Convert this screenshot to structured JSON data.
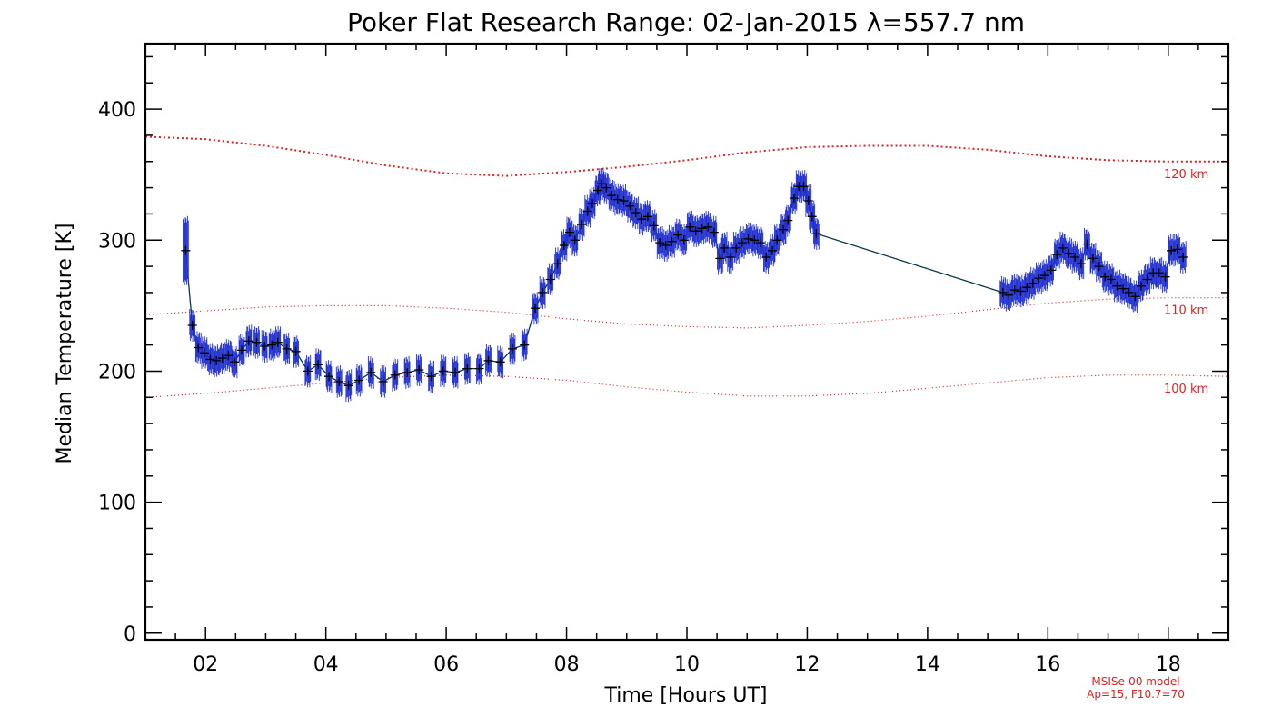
{
  "chart_data": {
    "type": "line",
    "title": "Poker Flat Research Range: 02-Jan-2015 λ=557.7 nm",
    "xlabel": "Time [Hours UT]",
    "ylabel": "Median Temperature [K]",
    "xlim": [
      1,
      19
    ],
    "ylim": [
      -5,
      450
    ],
    "x_ticks": [
      2,
      4,
      6,
      8,
      10,
      12,
      14,
      16,
      18
    ],
    "x_tick_labels": [
      "02",
      "04",
      "06",
      "08",
      "10",
      "12",
      "14",
      "16",
      "18"
    ],
    "y_ticks": [
      0,
      100,
      200,
      300,
      400
    ],
    "y_tick_labels": [
      "0",
      "100",
      "200",
      "300",
      "400"
    ],
    "grid": false,
    "colors": {
      "data_line": "#0a3a4a",
      "error_bars": "#1f2fd0",
      "markers": "#000000",
      "model": "#e02020"
    },
    "series": [
      {
        "marker": "+",
        "error_bars": true,
        "points": [
          [
            1.67,
            292,
            24
          ],
          [
            1.78,
            235,
            10
          ],
          [
            1.88,
            218,
            10
          ],
          [
            1.98,
            214,
            10
          ],
          [
            2.08,
            209,
            10
          ],
          [
            2.18,
            208,
            10
          ],
          [
            2.28,
            210,
            10
          ],
          [
            2.38,
            212,
            10
          ],
          [
            2.48,
            207,
            10
          ],
          [
            2.6,
            216,
            10
          ],
          [
            2.72,
            223,
            10
          ],
          [
            2.85,
            222,
            10
          ],
          [
            2.98,
            219,
            10
          ],
          [
            3.1,
            220,
            10
          ],
          [
            3.2,
            222,
            10
          ],
          [
            3.35,
            217,
            10
          ],
          [
            3.5,
            215,
            10
          ],
          [
            3.7,
            200,
            10
          ],
          [
            3.87,
            205,
            10
          ],
          [
            4.05,
            196,
            10
          ],
          [
            4.22,
            192,
            10
          ],
          [
            4.38,
            189,
            10
          ],
          [
            4.55,
            193,
            10
          ],
          [
            4.75,
            199,
            10
          ],
          [
            4.95,
            192,
            10
          ],
          [
            5.15,
            197,
            10
          ],
          [
            5.35,
            199,
            10
          ],
          [
            5.55,
            201,
            10
          ],
          [
            5.75,
            196,
            10
          ],
          [
            5.95,
            200,
            10
          ],
          [
            6.15,
            199,
            10
          ],
          [
            6.35,
            202,
            10
          ],
          [
            6.55,
            202,
            10
          ],
          [
            6.7,
            208,
            10
          ],
          [
            6.9,
            207,
            10
          ],
          [
            7.1,
            217,
            10
          ],
          [
            7.3,
            220,
            10
          ],
          [
            7.48,
            248,
            10
          ],
          [
            7.6,
            260,
            10
          ],
          [
            7.73,
            270,
            10
          ],
          [
            7.85,
            282,
            10
          ],
          [
            7.96,
            296,
            10
          ],
          [
            8.05,
            306,
            10
          ],
          [
            8.14,
            300,
            10
          ],
          [
            8.25,
            312,
            10
          ],
          [
            8.35,
            322,
            10
          ],
          [
            8.43,
            328,
            10
          ],
          [
            8.52,
            338,
            10
          ],
          [
            8.58,
            343,
            10
          ],
          [
            8.66,
            340,
            10
          ],
          [
            8.75,
            334,
            10
          ],
          [
            8.85,
            331,
            10
          ],
          [
            8.95,
            330,
            10
          ],
          [
            9.05,
            326,
            10
          ],
          [
            9.15,
            321,
            10
          ],
          [
            9.25,
            316,
            10
          ],
          [
            9.35,
            318,
            10
          ],
          [
            9.45,
            311,
            10
          ],
          [
            9.55,
            298,
            10
          ],
          [
            9.65,
            296,
            10
          ],
          [
            9.75,
            299,
            10
          ],
          [
            9.85,
            304,
            10
          ],
          [
            9.95,
            300,
            10
          ],
          [
            10.05,
            310,
            10
          ],
          [
            10.15,
            307,
            10
          ],
          [
            10.25,
            309,
            10
          ],
          [
            10.35,
            310,
            10
          ],
          [
            10.45,
            306,
            10
          ],
          [
            10.55,
            286,
            10
          ],
          [
            10.62,
            294,
            10
          ],
          [
            10.72,
            287,
            10
          ],
          [
            10.82,
            294,
            10
          ],
          [
            10.92,
            298,
            10
          ],
          [
            11.02,
            301,
            10
          ],
          [
            11.12,
            300,
            10
          ],
          [
            11.22,
            298,
            10
          ],
          [
            11.32,
            287,
            10
          ],
          [
            11.42,
            292,
            10
          ],
          [
            11.5,
            300,
            10
          ],
          [
            11.6,
            308,
            10
          ],
          [
            11.68,
            315,
            10
          ],
          [
            11.78,
            332,
            10
          ],
          [
            11.86,
            341,
            10
          ],
          [
            11.94,
            341,
            10
          ],
          [
            12.02,
            330,
            10
          ],
          [
            12.08,
            318,
            10
          ],
          [
            12.15,
            305,
            10
          ],
          [
            15.25,
            260,
            10
          ],
          [
            15.35,
            258,
            10
          ],
          [
            15.45,
            262,
            10
          ],
          [
            15.55,
            261,
            10
          ],
          [
            15.65,
            264,
            10
          ],
          [
            15.75,
            267,
            10
          ],
          [
            15.85,
            271,
            10
          ],
          [
            15.95,
            273,
            10
          ],
          [
            16.05,
            277,
            10
          ],
          [
            16.15,
            289,
            10
          ],
          [
            16.25,
            294,
            10
          ],
          [
            16.35,
            290,
            10
          ],
          [
            16.45,
            287,
            10
          ],
          [
            16.55,
            282,
            10
          ],
          [
            16.65,
            297,
            10
          ],
          [
            16.75,
            286,
            10
          ],
          [
            16.85,
            280,
            10
          ],
          [
            16.95,
            272,
            10
          ],
          [
            17.05,
            270,
            10
          ],
          [
            17.15,
            265,
            10
          ],
          [
            17.25,
            263,
            10
          ],
          [
            17.35,
            260,
            10
          ],
          [
            17.45,
            257,
            10
          ],
          [
            17.55,
            265,
            10
          ],
          [
            17.65,
            270,
            10
          ],
          [
            17.75,
            275,
            10
          ],
          [
            17.85,
            275,
            10
          ],
          [
            17.95,
            272,
            10
          ],
          [
            18.05,
            292,
            10
          ],
          [
            18.15,
            293,
            10
          ],
          [
            18.25,
            287,
            10
          ]
        ]
      },
      {
        "name": "120 km",
        "style": "dotted",
        "x": [
          1.0,
          2.0,
          3.0,
          4.0,
          5.0,
          6.0,
          7.0,
          8.0,
          9.0,
          10.0,
          11.0,
          12.0,
          13.0,
          14.0,
          15.0,
          16.0,
          17.0,
          18.0,
          19.0
        ],
        "y": [
          379,
          377,
          372,
          365,
          357,
          351,
          349,
          352,
          356,
          361,
          367,
          371,
          372,
          372,
          369,
          364,
          361,
          360,
          360
        ]
      },
      {
        "name": "110 km",
        "style": "dotted",
        "x": [
          1.0,
          2.0,
          3.0,
          4.0,
          5.0,
          6.0,
          7.0,
          8.0,
          9.0,
          10.0,
          11.0,
          12.0,
          13.0,
          14.0,
          15.0,
          16.0,
          17.0,
          18.0,
          19.0
        ],
        "y": [
          243,
          246,
          249,
          250,
          250,
          248,
          245,
          240,
          236,
          234,
          233,
          235,
          238,
          242,
          247,
          252,
          255,
          256,
          256
        ]
      },
      {
        "name": "100 km",
        "style": "dotted",
        "x": [
          1.0,
          2.0,
          3.0,
          4.0,
          5.0,
          6.0,
          7.0,
          8.0,
          9.0,
          10.0,
          11.0,
          12.0,
          13.0,
          14.0,
          15.0,
          16.0,
          17.0,
          18.0,
          19.0
        ],
        "y": [
          180,
          183,
          187,
          191,
          195,
          197,
          196,
          193,
          188,
          184,
          181,
          181,
          183,
          187,
          191,
          195,
          197,
          197,
          196
        ]
      }
    ],
    "annotations": [
      "MSISe-00 model",
      "Ap=15, F10.7=70"
    ]
  }
}
